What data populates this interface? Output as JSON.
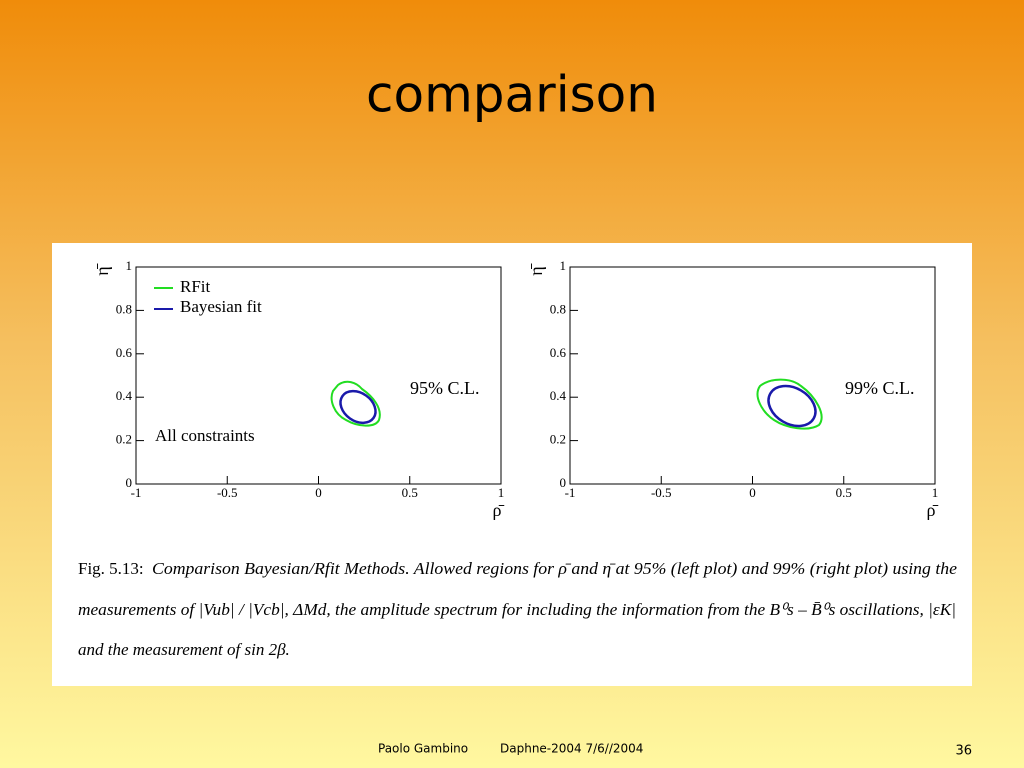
{
  "title": "comparison",
  "figure": {
    "plots": [
      {
        "xlim": [
          -1,
          1
        ],
        "ylim": [
          0,
          1
        ],
        "xticks": [
          -1,
          -0.5,
          0,
          0.5,
          1
        ],
        "yticks": [
          0,
          0.2,
          0.4,
          0.6,
          0.8,
          1
        ],
        "xlabel": "ρ̄",
        "ylabel": "η̄",
        "legend": [
          "RFit",
          "Bayesian fit"
        ],
        "annotations": [
          "95% C.L.",
          "All constraints"
        ]
      },
      {
        "xlim": [
          -1,
          1
        ],
        "ylim": [
          0,
          1
        ],
        "xticks": [
          -1,
          -0.5,
          0,
          0.5,
          1
        ],
        "yticks": [
          0,
          0.2,
          0.4,
          0.6,
          0.8,
          1
        ],
        "xlabel": "ρ̄",
        "ylabel": "η̄",
        "annotations": [
          "99% C.L."
        ]
      }
    ],
    "caption": {
      "label": "Fig. 5.13:",
      "lines": [
        "Comparison Bayesian/Rfit  Methods. Allowed regions for ρ̄ and η̄ at 95% (left plot) and 99% (right plot) using the",
        "measurements of |Vub| / |Vcb|, ΔMd, the amplitude spectrum for including the information from the B⁰s – B̄⁰s oscillations, |εK|",
        "and the measurement of sin 2β."
      ]
    }
  },
  "footer": {
    "author": "Paolo Gambino",
    "event": "Daphne-2004  7/6//2004",
    "page": "36"
  }
}
